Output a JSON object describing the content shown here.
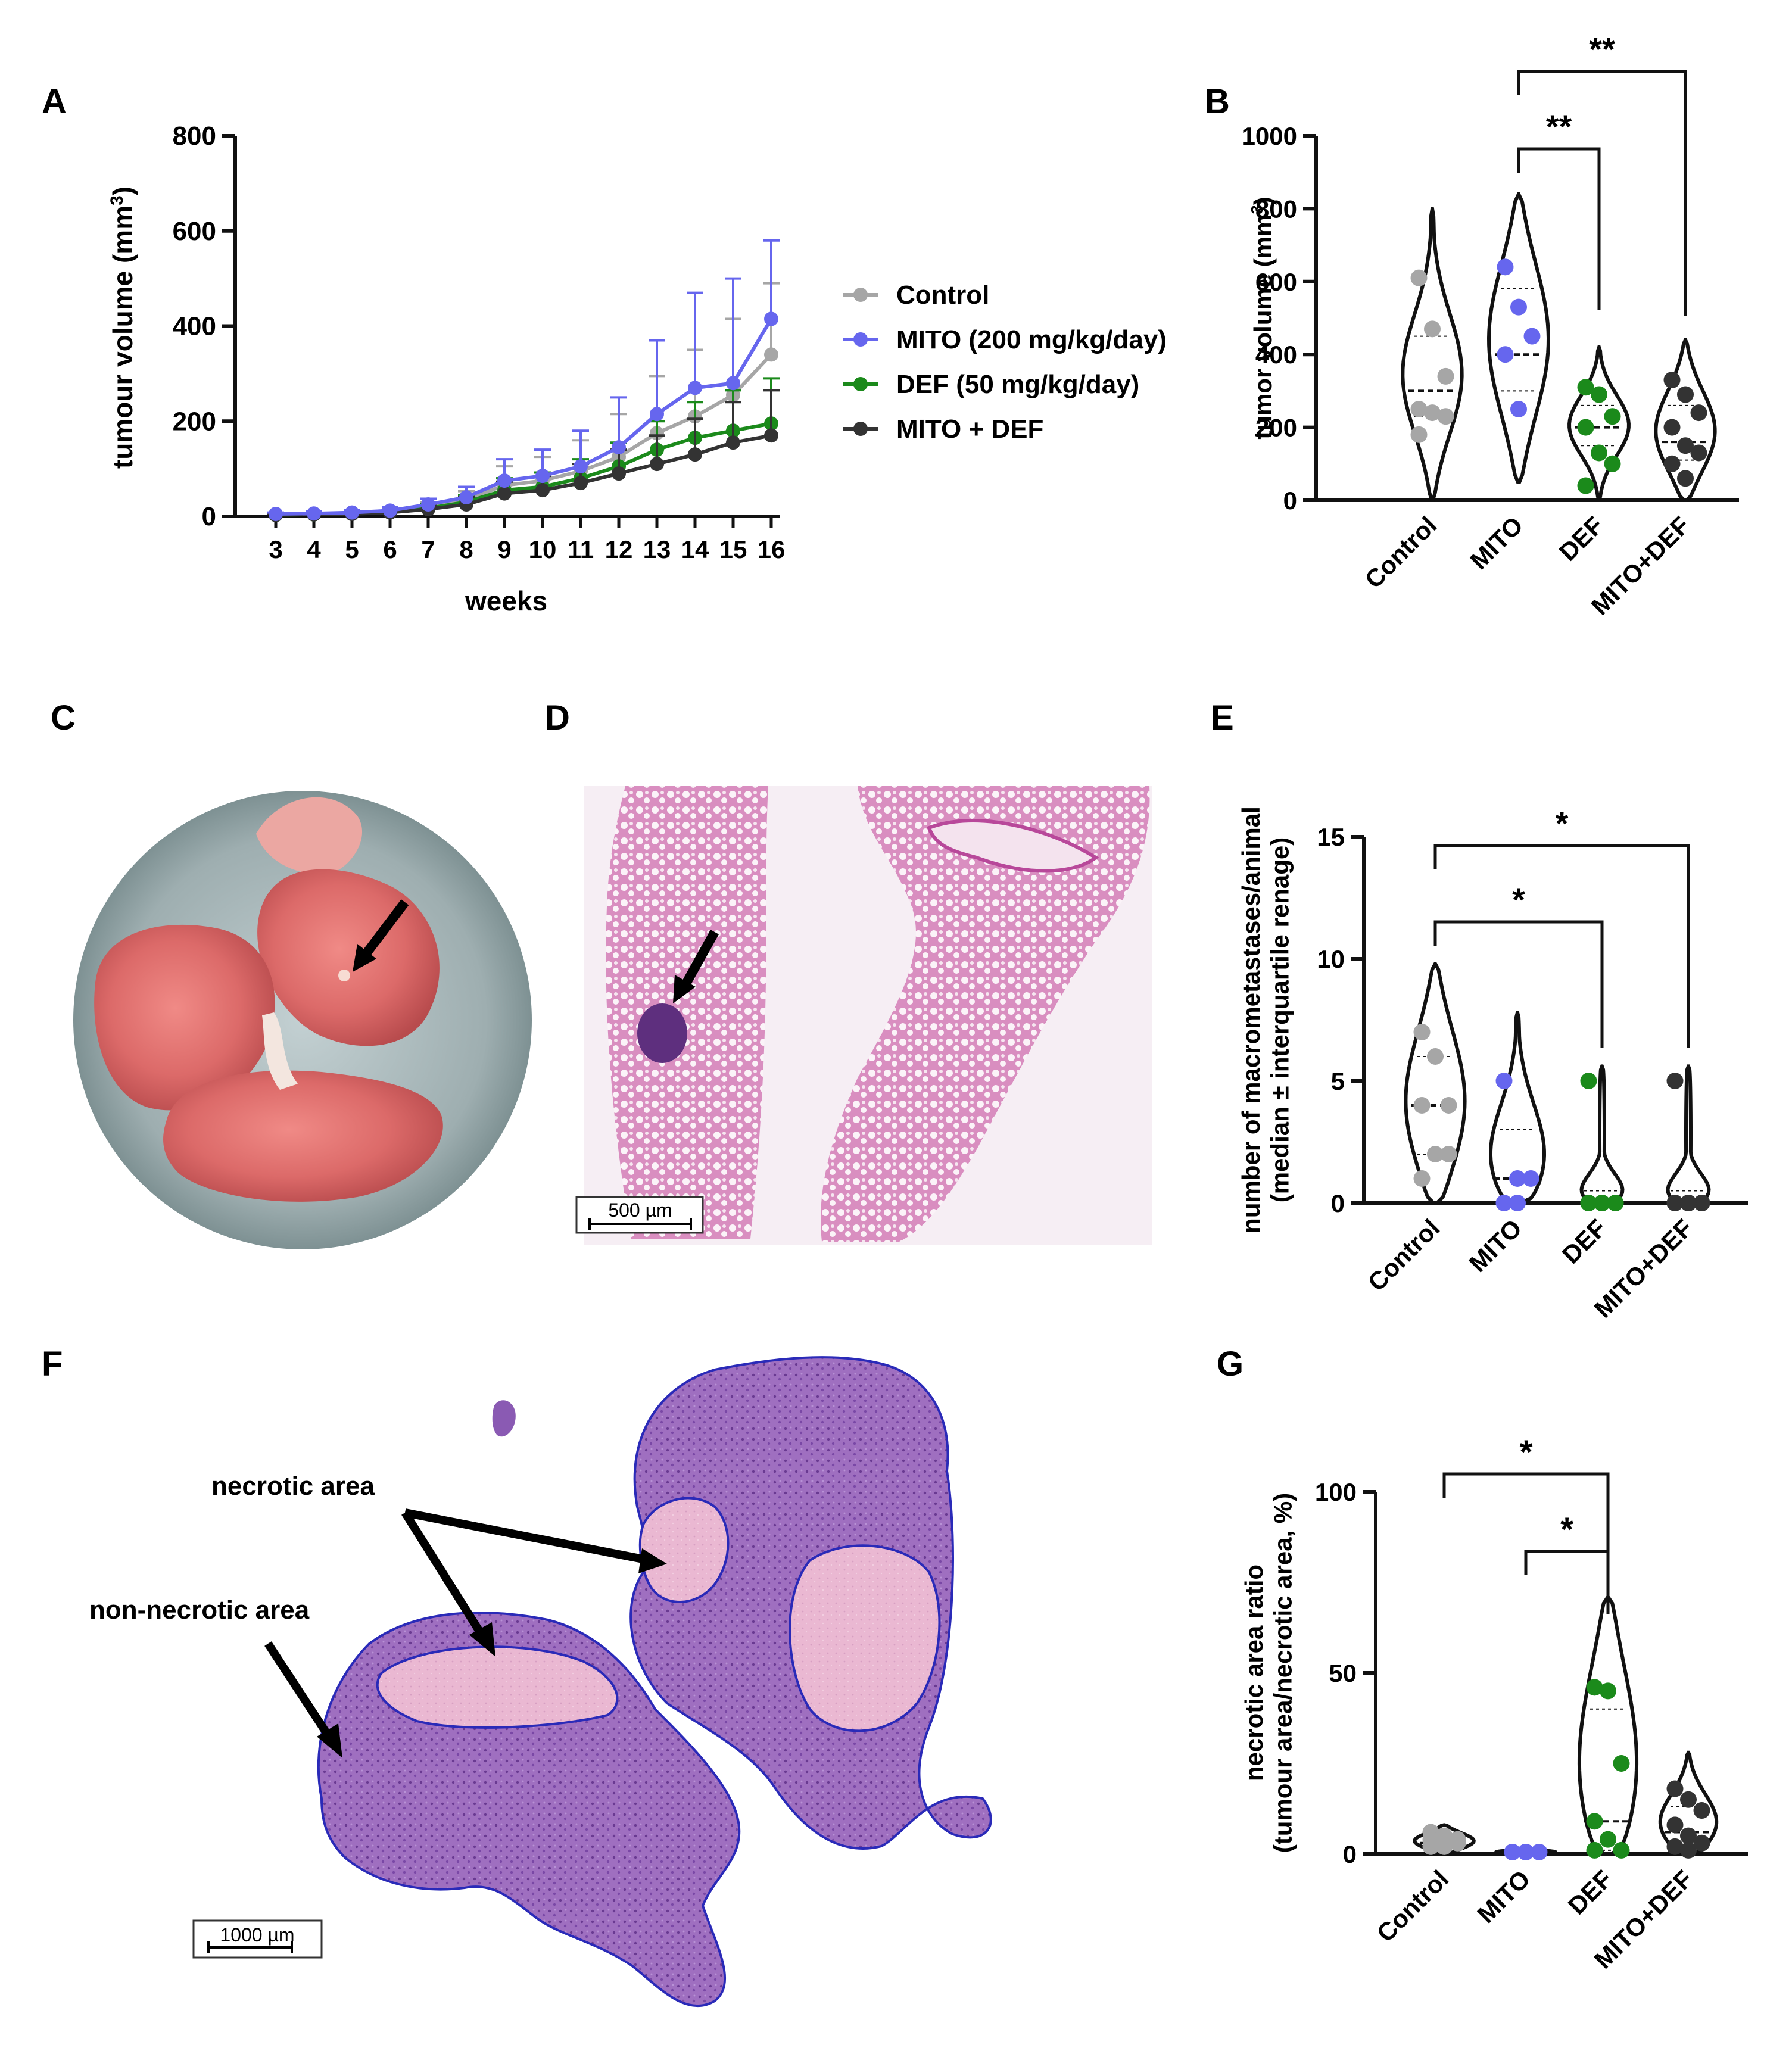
{
  "colors": {
    "control": "#a6a6a6",
    "mito": "#6666ee",
    "def": "#1b8a1b",
    "combo": "#333333",
    "axis": "#111111"
  },
  "panels": {
    "A": {
      "label": "A"
    },
    "B": {
      "label": "B"
    },
    "C": {
      "label": "C",
      "arrow": "black-arrow"
    },
    "D": {
      "label": "D",
      "scale_bar": "500 µm"
    },
    "E": {
      "label": "E"
    },
    "F": {
      "label": "F",
      "scale_bar": "1000 µm",
      "annotations": [
        "necrotic area",
        "non-necrotic area"
      ]
    },
    "G": {
      "label": "G"
    }
  },
  "chart_data": [
    {
      "panel": "A",
      "type": "line",
      "xlabel": "weeks",
      "ylabel": "tumour volume (mm3)",
      "ylim": [
        0,
        800
      ],
      "yticks": [
        0,
        200,
        400,
        600,
        800
      ],
      "x": [
        3,
        4,
        5,
        6,
        7,
        8,
        9,
        10,
        11,
        12,
        13,
        14,
        15,
        16
      ],
      "series": [
        {
          "name": "Control",
          "color": "#a6a6a6",
          "values": [
            4,
            5,
            7,
            10,
            20,
            35,
            65,
            75,
            95,
            125,
            175,
            210,
            255,
            340
          ],
          "errors": [
            3,
            3,
            4,
            6,
            10,
            18,
            40,
            50,
            65,
            90,
            120,
            140,
            160,
            150
          ]
        },
        {
          "name": "MITO (200 mg/kg/day)",
          "color": "#6666ee",
          "values": [
            5,
            6,
            8,
            12,
            25,
            40,
            75,
            85,
            105,
            145,
            215,
            270,
            280,
            415
          ],
          "errors": [
            3,
            4,
            5,
            7,
            12,
            22,
            45,
            55,
            75,
            105,
            155,
            200,
            220,
            165
          ]
        },
        {
          "name": "DEF (50 mg/kg/day)",
          "color": "#1b8a1b",
          "values": [
            3,
            4,
            6,
            9,
            17,
            30,
            55,
            62,
            80,
            105,
            140,
            165,
            180,
            195
          ],
          "errors": [
            2,
            3,
            4,
            5,
            8,
            15,
            25,
            30,
            40,
            50,
            60,
            75,
            85,
            95
          ]
        },
        {
          "name": "MITO + DEF",
          "color": "#333333",
          "values": [
            3,
            4,
            5,
            8,
            15,
            25,
            48,
            55,
            70,
            90,
            110,
            130,
            155,
            170
          ],
          "errors": [
            2,
            3,
            4,
            5,
            8,
            15,
            25,
            30,
            40,
            50,
            60,
            75,
            85,
            95
          ]
        }
      ]
    },
    {
      "panel": "B",
      "type": "violin",
      "ylabel": "tumor volume (mm3)",
      "ylim": [
        0,
        1000
      ],
      "yticks": [
        0,
        200,
        400,
        600,
        800,
        1000
      ],
      "categories": [
        "Control",
        "MITO",
        "DEF",
        "MITO+DEF"
      ],
      "groups": [
        {
          "name": "Control",
          "color": "#a6a6a6",
          "points": [
            610,
            470,
            340,
            250,
            240,
            230,
            180
          ],
          "median": 300,
          "q1": 230,
          "q3": 450,
          "range": [
            0,
            800
          ]
        },
        {
          "name": "MITO",
          "color": "#6666ee",
          "points": [
            640,
            530,
            450,
            400,
            250
          ],
          "median": 400,
          "q1": 300,
          "q3": 580,
          "range": [
            50,
            840
          ]
        },
        {
          "name": "DEF",
          "color": "#1b8a1b",
          "points": [
            310,
            290,
            230,
            200,
            130,
            100,
            40
          ],
          "median": 200,
          "q1": 150,
          "q3": 260,
          "range": [
            0,
            420
          ]
        },
        {
          "name": "MITO+DEF",
          "color": "#333333",
          "points": [
            330,
            290,
            240,
            200,
            150,
            130,
            100,
            60
          ],
          "median": 160,
          "q1": 110,
          "q3": 260,
          "range": [
            0,
            440
          ]
        }
      ],
      "significance": [
        {
          "from": "MITO",
          "to": "DEF",
          "label": "**"
        },
        {
          "from": "MITO",
          "to": "MITO+DEF",
          "label": "**"
        }
      ]
    },
    {
      "panel": "E",
      "type": "violin",
      "ylabel": "number of macrometastases/animal (median ± interquartile renage)",
      "ylabel_lines": [
        "number of macrometastases/animal",
        "(median ± interquartile renage)"
      ],
      "ylim": [
        0,
        15
      ],
      "yticks": [
        0,
        5,
        10,
        15
      ],
      "categories": [
        "Control",
        "MITO",
        "DEF",
        "MITO+DEF"
      ],
      "groups": [
        {
          "name": "Control",
          "color": "#a6a6a6",
          "points": [
            7,
            6,
            4,
            4,
            2,
            2,
            1
          ],
          "median": 4,
          "q1": 2,
          "q3": 6,
          "range": [
            0,
            9.8
          ]
        },
        {
          "name": "MITO",
          "color": "#6666ee",
          "points": [
            5,
            1,
            1,
            0,
            0
          ],
          "median": 1,
          "q1": 0,
          "q3": 3,
          "range": [
            0,
            7.8
          ]
        },
        {
          "name": "DEF",
          "color": "#1b8a1b",
          "points": [
            5,
            0,
            0,
            0,
            0,
            0,
            0
          ],
          "median": 0,
          "q1": 0,
          "q3": 0.5,
          "range": [
            0,
            5.6
          ]
        },
        {
          "name": "MITO+DEF",
          "color": "#333333",
          "points": [
            5,
            0,
            0,
            0,
            0,
            0,
            0,
            0
          ],
          "median": 0,
          "q1": 0,
          "q3": 0.5,
          "range": [
            0,
            5.6
          ]
        }
      ],
      "significance": [
        {
          "from": "Control",
          "to": "DEF",
          "label": "*"
        },
        {
          "from": "Control",
          "to": "MITO+DEF",
          "label": "*"
        }
      ]
    },
    {
      "panel": "G",
      "type": "violin",
      "ylabel": "necrotic area ratio (tumour area/necrotic area, %)",
      "ylabel_lines": [
        "necrotic area ratio",
        "(tumour area/necrotic area, %)"
      ],
      "ylim": [
        0,
        100
      ],
      "yticks": [
        0,
        50,
        100
      ],
      "categories": [
        "Control",
        "MITO",
        "DEF",
        "MITO+DEF"
      ],
      "groups": [
        {
          "name": "Control",
          "color": "#a6a6a6",
          "points": [
            6,
            5,
            4,
            4,
            3,
            3,
            2,
            2
          ],
          "median": 3,
          "q1": 2,
          "q3": 5,
          "range": [
            0,
            8
          ]
        },
        {
          "name": "MITO",
          "color": "#6666ee",
          "points": [
            0.5,
            0.5,
            0.5,
            0.5,
            0.5
          ],
          "median": 0.5,
          "q1": 0,
          "q3": 1,
          "range": [
            0,
            1
          ]
        },
        {
          "name": "DEF",
          "color": "#1b8a1b",
          "points": [
            46,
            45,
            25,
            9,
            4,
            1,
            1
          ],
          "median": 9,
          "q1": 1,
          "q3": 40,
          "range": [
            0,
            71
          ]
        },
        {
          "name": "MITO+DEF",
          "color": "#333333",
          "points": [
            18,
            15,
            12,
            8,
            5,
            3,
            2,
            1
          ],
          "median": 6,
          "q1": 2,
          "q3": 13,
          "range": [
            0,
            28
          ]
        }
      ],
      "significance": [
        {
          "from": "Control",
          "to": "DEF",
          "label": "*"
        },
        {
          "from": "MITO",
          "to": "DEF",
          "label": "*"
        }
      ]
    }
  ]
}
